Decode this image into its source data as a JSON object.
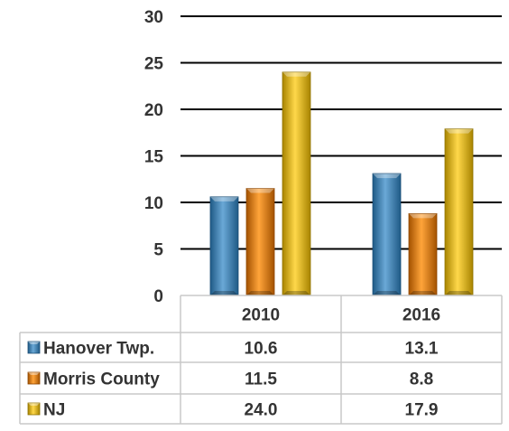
{
  "chart_data": {
    "type": "bar",
    "categories": [
      "2010",
      "2016"
    ],
    "series": [
      {
        "name": "Hanover Twp.",
        "values": [
          10.6,
          13.1
        ],
        "labels": [
          "10.6",
          "13.1"
        ],
        "color": "#3a7fb3"
      },
      {
        "name": "Morris County",
        "values": [
          11.5,
          8.8
        ],
        "labels": [
          "11.5",
          "8.8"
        ],
        "color": "#e07b0c"
      },
      {
        "name": "NJ",
        "values": [
          24.0,
          17.9
        ],
        "labels": [
          "24.0",
          "17.9"
        ],
        "color": "#e6b800"
      }
    ],
    "yticks": [
      "0",
      "5",
      "10",
      "15",
      "20",
      "25",
      "30"
    ],
    "ylim": [
      0,
      30
    ],
    "grid": true,
    "legend": "data-table"
  }
}
